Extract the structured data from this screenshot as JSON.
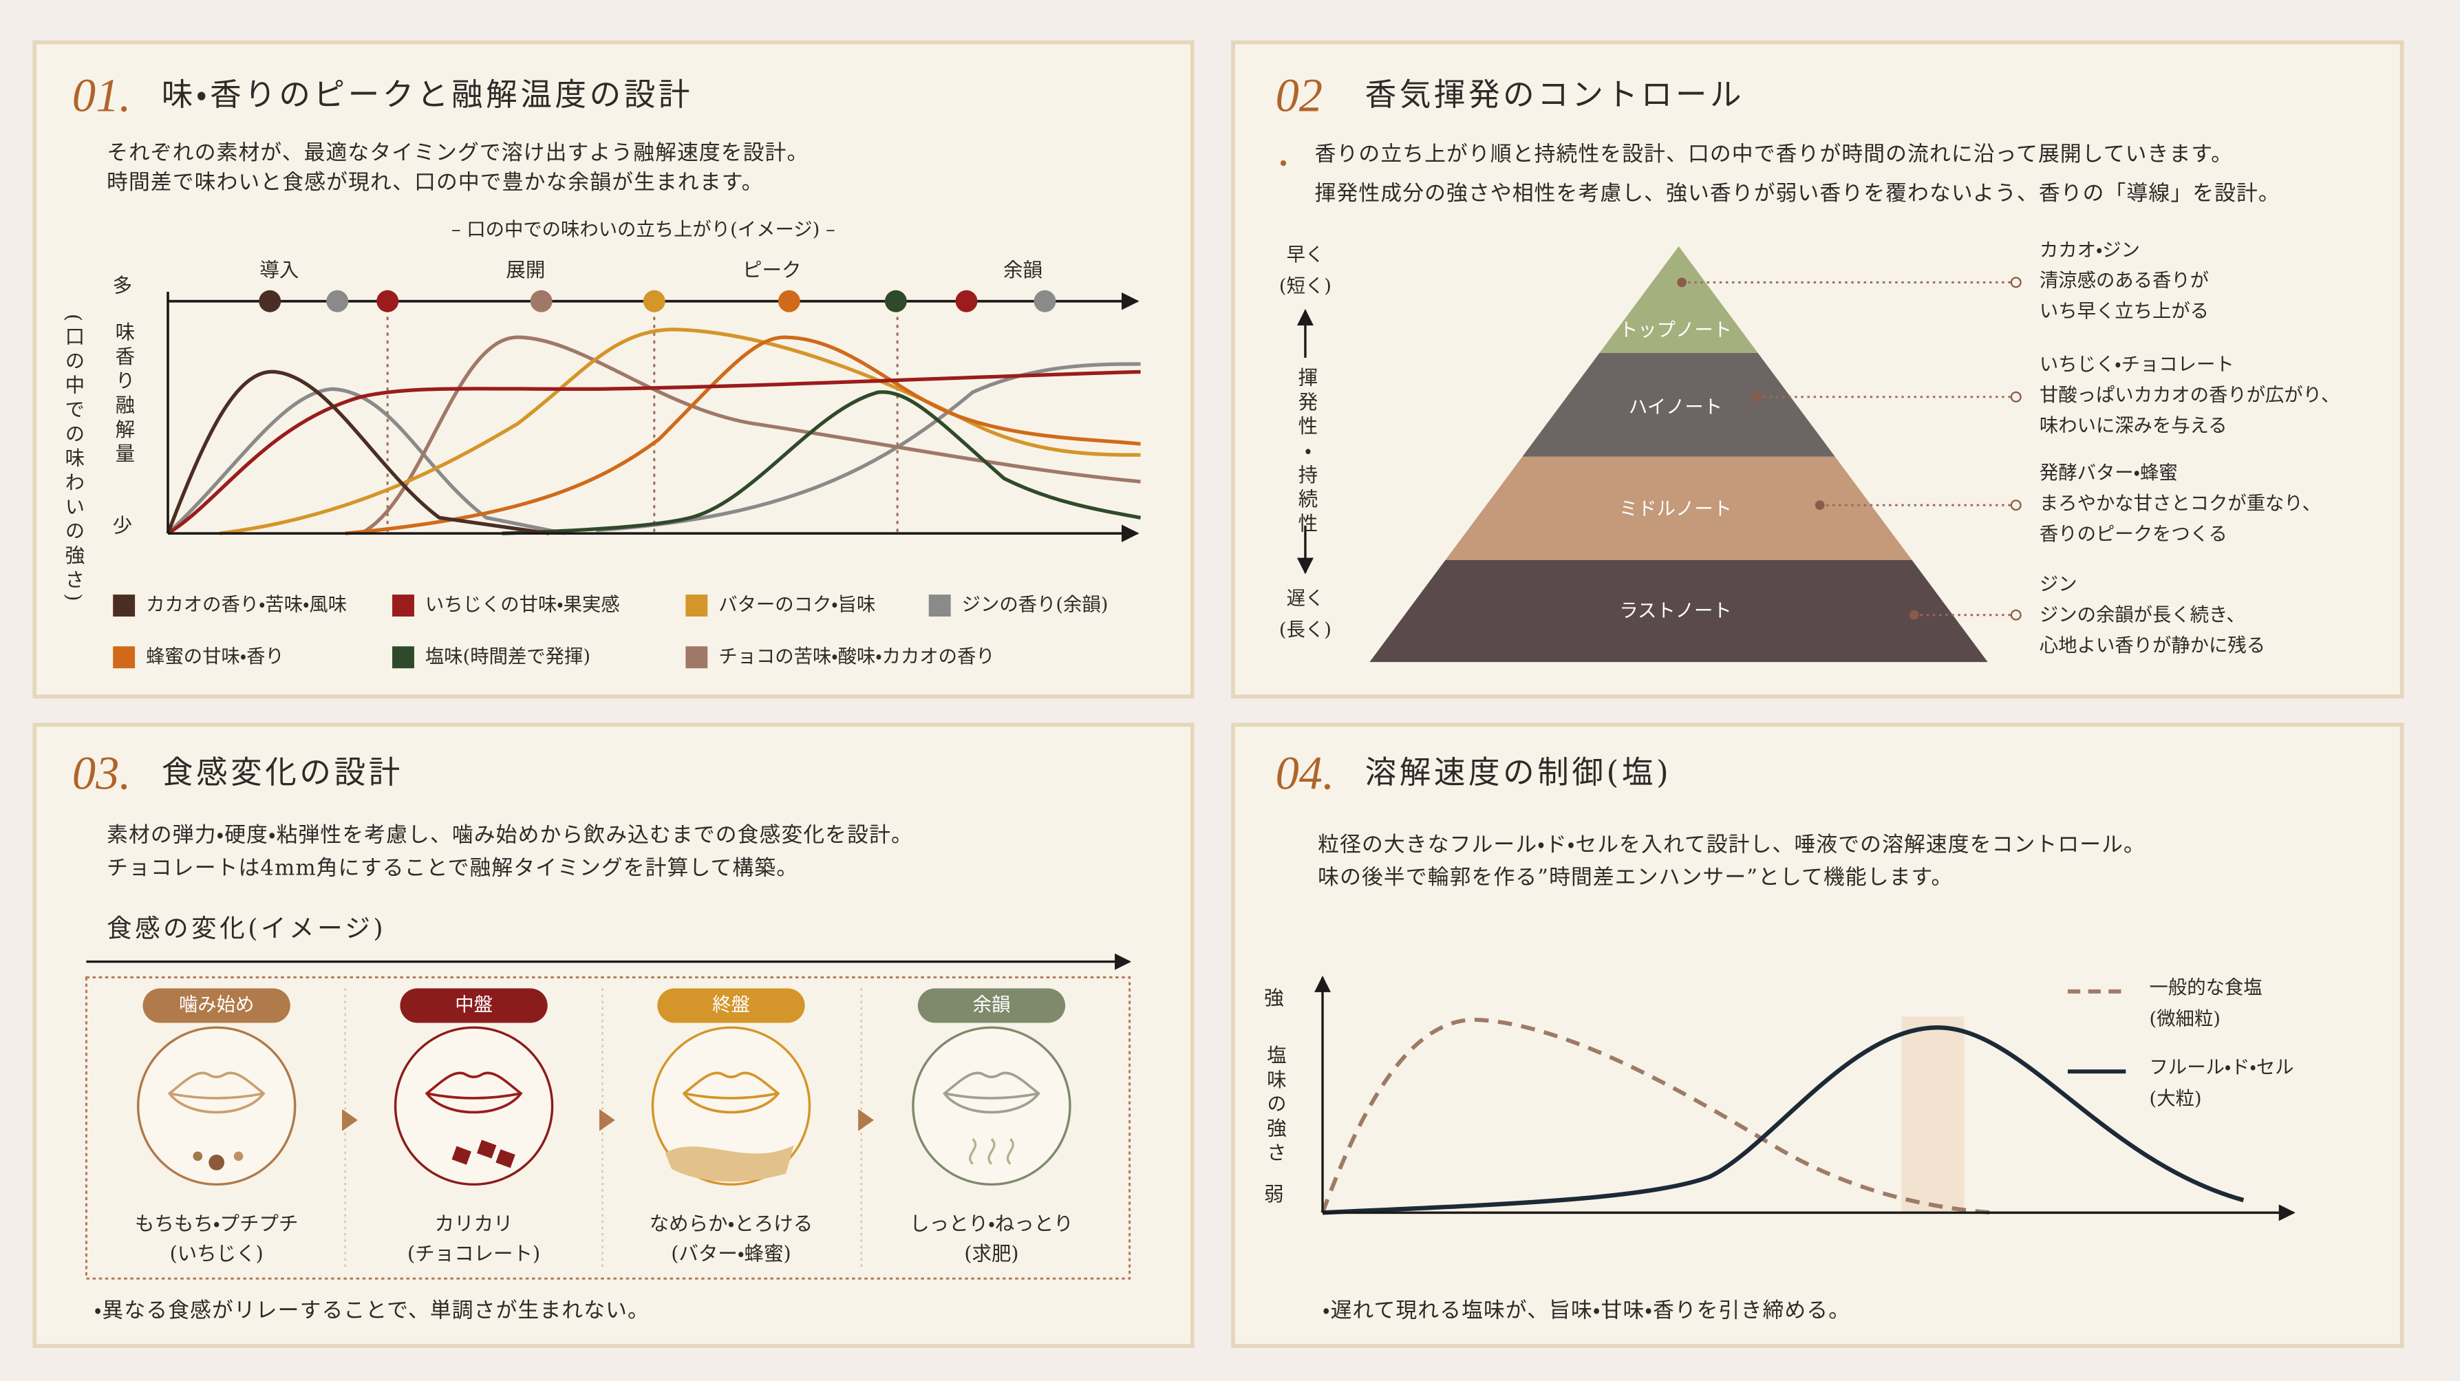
{
  "section1": {
    "number": "01.",
    "title": "味・香りのピークと融解温度の設計",
    "description": [
      "それぞれの素材が、最適なタイミングで溶け出すよう融解速度を設計。",
      "時間差で味わいと食感が現れ、口の中で豊かな余韻が生まれます。"
    ],
    "caption": "– 口の中での味わいの立ち上がり(イメージ) –",
    "axis_high": "多",
    "axis_label": "味香り融解量",
    "axis_low": "少",
    "axis_note": "(口の中での味わいの強さ)",
    "phases": [
      "導入",
      "展開",
      "ピーク",
      "余韻"
    ],
    "legend": [
      {
        "label": "カカオの香り・苦味・風味",
        "color": "#4a2e24"
      },
      {
        "label": "いちじくの甘味・果実感",
        "color": "#9b1c1c"
      },
      {
        "label": "バターのコク・旨味",
        "color": "#d4952a"
      },
      {
        "label": "ジンの香り(余韻)",
        "color": "#8a8a8a"
      },
      {
        "label": "蜂蜜の甘味・香り",
        "color": "#d06a1a"
      },
      {
        "label": "塩味(時間差で発揮)",
        "color": "#2f4a2a"
      },
      {
        "label": "チョコの苦味・酸味・カカオの香り",
        "color": "#a07868"
      }
    ]
  },
  "section2": {
    "number": "02",
    "title": "香気揮発のコントロール",
    "description": [
      "香りの立ち上がり順と持続性を設計、口の中で香りが時間の流れに沿って展開していきます。",
      "揮発性成分の強さや相性を考慮し、強い香りが弱い香りを覆わないよう、香りの「導線」を設計。"
    ],
    "fast": "早く",
    "fast_note": "(短く)",
    "axis_label": "揮発性・持続性",
    "slow": "遅く",
    "slow_note": "(長く)",
    "layers": [
      {
        "name": "トップノート",
        "color": "#a5b07f",
        "notes": [
          "カカオ・ジン",
          "清涼感のある香りが",
          "いち早く立ち上がる"
        ]
      },
      {
        "name": "ハイノート",
        "color": "#6d6563",
        "notes": [
          "いちじく・チョコレート",
          "甘酸っぱいカカオの香りが広がり、",
          "味わいに深みを与える"
        ]
      },
      {
        "name": "ミドルノート",
        "color": "#c49a7a",
        "notes": [
          "発酵バター・蜂蜜",
          "まろやかな甘さとコクが重なり、",
          "香りのピークをつくる"
        ]
      },
      {
        "name": "ラストノート",
        "color": "#5a4a4c",
        "notes": [
          "ジン",
          "ジンの余韻が長く続き、",
          "心地よい香りが静かに残る"
        ]
      }
    ]
  },
  "section3": {
    "number": "03.",
    "title": "食感変化の設計",
    "description": [
      "素材の弾力・硬度・粘弾性を考慮し、噛み始めから飲み込むまでの食感変化を設計。",
      "チョコレートは4mm角にすることで融解タイミングを計算して構築。"
    ],
    "timeline_title": "食感の変化(イメージ)",
    "stages": [
      {
        "tag": "噛み始め",
        "color": "#b07a4a",
        "texture": "もちもち・プチプチ",
        "source": "(いちじく)"
      },
      {
        "tag": "中盤",
        "color": "#8b1c1c",
        "texture": "カリカリ",
        "source": "(チョコレート)"
      },
      {
        "tag": "終盤",
        "color": "#d4952a",
        "texture": "なめらか・とろける",
        "source": "(バター・蜂蜜)"
      },
      {
        "tag": "余韻",
        "color": "#7f8a6c",
        "texture": "しっとり・ねっとり",
        "source": "(求肥)"
      }
    ],
    "note": "・異なる食感がリレーすることで、単調さが生まれない。"
  },
  "section4": {
    "number": "04.",
    "title": "溶解速度の制御(塩)",
    "description": [
      "粒径の大きなフルール・ド・セルを入れて設計し、唾液での溶解速度をコントロール。",
      "味の後半で輪郭を作る”時間差エンハンサー”として機能します。"
    ],
    "axis_high": "強",
    "axis_label": "塩味の強さ",
    "axis_low": "弱",
    "legend": [
      {
        "name": "一般的な食塩",
        "size": "(微細粒)",
        "color": "#9e7b66"
      },
      {
        "name": "フルール・ド・セル",
        "size": "(大粒)",
        "color": "#1c2a38"
      }
    ],
    "note": "・遅れて現れる塩味が、旨味・甘味・香りを引き締める。"
  }
}
